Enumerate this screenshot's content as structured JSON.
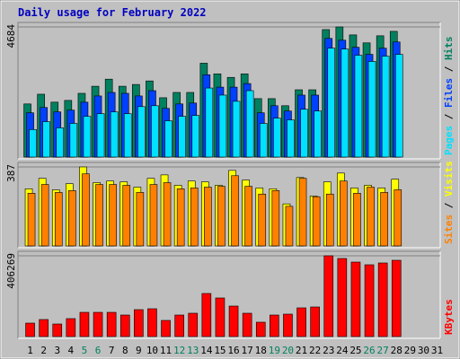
{
  "title": "Daily usage for February 2022",
  "legend_separator": " / ",
  "categories": [
    "1",
    "2",
    "3",
    "4",
    "5",
    "6",
    "7",
    "8",
    "9",
    "10",
    "11",
    "12",
    "13",
    "14",
    "15",
    "16",
    "17",
    "18",
    "19",
    "20",
    "21",
    "22",
    "23",
    "24",
    "25",
    "26",
    "27",
    "28",
    "29",
    "30",
    "31"
  ],
  "label_colors": [
    "#000",
    "#000",
    "#000",
    "#000",
    "#00805f",
    "#00805f",
    "#000",
    "#000",
    "#000",
    "#000",
    "#000",
    "#00805f",
    "#00805f",
    "#000",
    "#000",
    "#000",
    "#000",
    "#000",
    "#00805f",
    "#00805f",
    "#000",
    "#000",
    "#000",
    "#000",
    "#000",
    "#00805f",
    "#00805f",
    "#000",
    "#000",
    "#000",
    "#000"
  ],
  "chart_data": [
    {
      "type": "bar",
      "ylim": [
        0,
        4684
      ],
      "yticks": [
        4684
      ],
      "series": [
        {
          "name": "Hits",
          "color": "#00805f",
          "values": [
            1912,
            2262,
            1976,
            2039,
            2294,
            2549,
            2804,
            2549,
            2613,
            2740,
            2135,
            2326,
            2326,
            3378,
            2995,
            2868,
            2995,
            2103,
            2103,
            1848,
            2422,
            2422,
            4588,
            4684,
            4397,
            4110,
            4365,
            4525,
            null,
            null,
            null
          ]
        },
        {
          "name": "Files",
          "color": "#0040ff",
          "values": [
            1593,
            1784,
            1625,
            1689,
            1975,
            2199,
            2326,
            2294,
            2199,
            2390,
            1752,
            1912,
            1944,
            2963,
            2517,
            2517,
            2645,
            1593,
            1848,
            1657,
            2230,
            2230,
            4270,
            4206,
            3951,
            3696,
            3919,
            4142,
            null,
            null,
            null
          ]
        },
        {
          "name": "Pages",
          "color": "#00e0ff",
          "values": [
            988,
            1274,
            1051,
            1211,
            1466,
            1561,
            1625,
            1561,
            1816,
            1848,
            1306,
            1466,
            1497,
            2485,
            2230,
            2007,
            2390,
            1211,
            1402,
            1338,
            1720,
            1657,
            3919,
            3887,
            3664,
            3441,
            3632,
            3696,
            null,
            null,
            null
          ]
        }
      ]
    },
    {
      "type": "bar",
      "ylim": [
        0,
        387
      ],
      "yticks": [
        387
      ],
      "series": [
        {
          "name": "Visits",
          "color": "#ffff00",
          "values": [
            280,
            331,
            275,
            305,
            387,
            310,
            318,
            314,
            288,
            331,
            348,
            297,
            318,
            314,
            297,
            370,
            323,
            284,
            280,
            206,
            335,
            245,
            314,
            357,
            284,
            297,
            284,
            327,
            null,
            null,
            null
          ]
        },
        {
          "name": "Sites",
          "color": "#ff8000",
          "values": [
            258,
            301,
            262,
            271,
            353,
            301,
            301,
            297,
            262,
            301,
            310,
            280,
            284,
            288,
            292,
            344,
            292,
            254,
            271,
            194,
            331,
            241,
            254,
            318,
            258,
            288,
            262,
            275,
            null,
            null,
            null
          ]
        }
      ]
    },
    {
      "type": "bar",
      "ylim": [
        0,
        406269
      ],
      "yticks": [
        406269
      ],
      "series": [
        {
          "name": "KBytes",
          "color": "#ff0000",
          "values": [
            67710,
            85766,
            63196,
            90280,
            121878,
            121878,
            121878,
            108336,
            135420,
            139934,
            81252,
            108336,
            117364,
            216672,
            194102,
            153476,
            117364,
            72224,
            108336,
            112850,
            144448,
            148962,
            406269,
            392718,
            374662,
            361120,
            370148,
            383690,
            null,
            null,
            null
          ]
        }
      ]
    }
  ]
}
